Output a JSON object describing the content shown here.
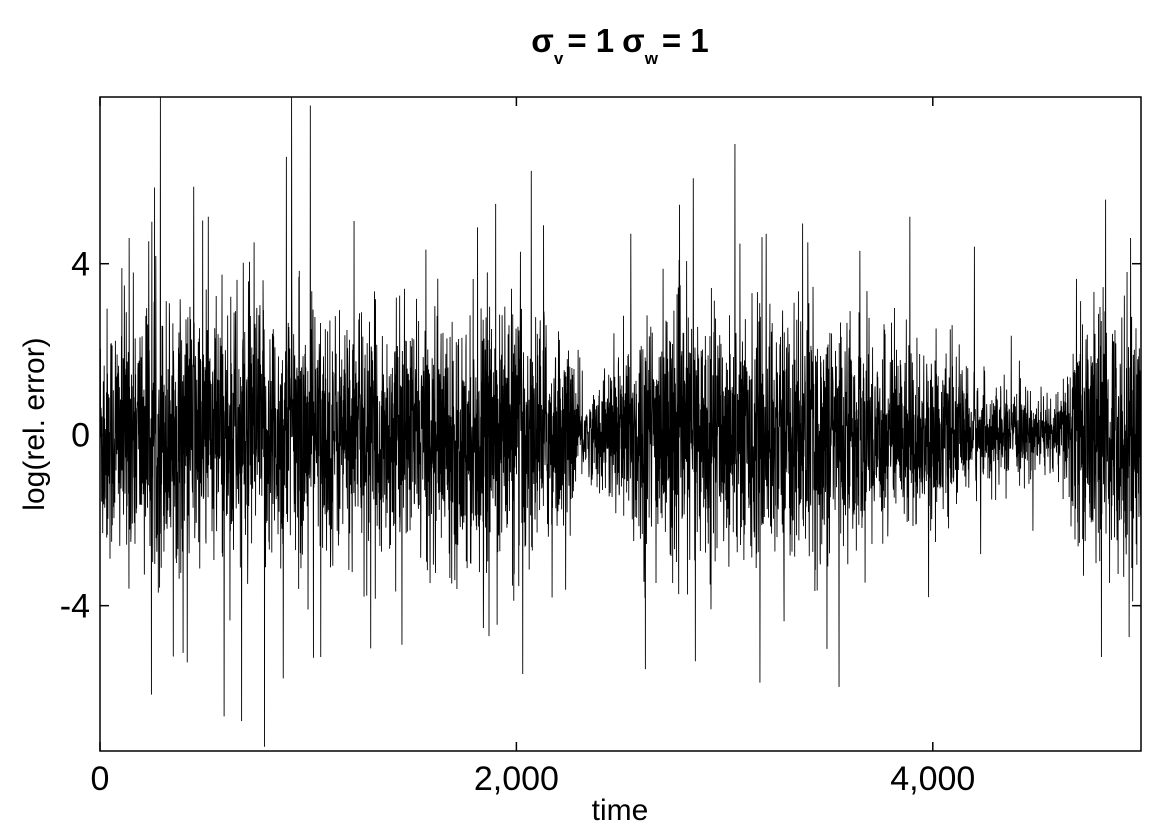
{
  "chart_data": {
    "type": "line",
    "title": {
      "parts": [
        {
          "sym": "σ",
          "sub": "v",
          "eq": "=  1"
        },
        {
          "sym": "σ",
          "sub": "w",
          "eq": "=  1"
        }
      ]
    },
    "xlabel": "time",
    "ylabel": "log(rel. error)",
    "xlim": [
      0,
      5000
    ],
    "ylim": [
      -7.4,
      7.9
    ],
    "xticks": [
      0,
      2000,
      4000
    ],
    "xtick_labels": [
      "0",
      "2,000",
      "4,000"
    ],
    "yticks": [
      4,
      0,
      -4
    ],
    "ytick_labels": [
      "4",
      "0",
      "-4"
    ],
    "grid": false,
    "series": [
      {
        "color": "#000000",
        "n_points": 5000,
        "mean": 0,
        "envelope": [
          {
            "x": 0,
            "amp": 1.7
          },
          {
            "x": 300,
            "amp": 1.8
          },
          {
            "x": 600,
            "amp": 1.8
          },
          {
            "x": 1000,
            "amp": 1.7
          },
          {
            "x": 1300,
            "amp": 1.5
          },
          {
            "x": 1700,
            "amp": 1.6
          },
          {
            "x": 2000,
            "amp": 1.8
          },
          {
            "x": 2200,
            "amp": 1.4
          },
          {
            "x": 2350,
            "amp": 0.5
          },
          {
            "x": 2450,
            "amp": 1.0
          },
          {
            "x": 2600,
            "amp": 1.7
          },
          {
            "x": 3000,
            "amp": 1.6
          },
          {
            "x": 3400,
            "amp": 1.7
          },
          {
            "x": 3700,
            "amp": 1.4
          },
          {
            "x": 4000,
            "amp": 1.1
          },
          {
            "x": 4300,
            "amp": 0.6
          },
          {
            "x": 4600,
            "amp": 0.5
          },
          {
            "x": 4700,
            "amp": 1.6
          },
          {
            "x": 5000,
            "amp": 1.7
          }
        ],
        "spikes": [
          {
            "x": 140,
            "y": 4.6
          },
          {
            "x": 290,
            "y": 7.9
          },
          {
            "x": 450,
            "y": 5.8
          },
          {
            "x": 520,
            "y": 5.1
          },
          {
            "x": 740,
            "y": 4.5
          },
          {
            "x": 895,
            "y": 6.5
          },
          {
            "x": 920,
            "y": 7.9
          },
          {
            "x": 1010,
            "y": 7.7
          },
          {
            "x": 1220,
            "y": 5.0
          },
          {
            "x": 1900,
            "y": 5.4
          },
          {
            "x": 2130,
            "y": 4.9
          },
          {
            "x": 2550,
            "y": 4.7
          },
          {
            "x": 2850,
            "y": 6.0
          },
          {
            "x": 3050,
            "y": 6.8
          },
          {
            "x": 3200,
            "y": 4.7
          },
          {
            "x": 3400,
            "y": 4.5
          },
          {
            "x": 3650,
            "y": 4.3
          },
          {
            "x": 3890,
            "y": 5.1
          },
          {
            "x": 4200,
            "y": 4.4
          },
          {
            "x": 4830,
            "y": 5.5
          },
          {
            "x": 4950,
            "y": 4.6
          },
          {
            "x": 680,
            "y": -6.7
          },
          {
            "x": 790,
            "y": -7.3
          },
          {
            "x": 880,
            "y": -5.7
          },
          {
            "x": 1060,
            "y": -5.2
          },
          {
            "x": 1300,
            "y": -5.0
          },
          {
            "x": 2030,
            "y": -5.6
          },
          {
            "x": 2860,
            "y": -5.3
          },
          {
            "x": 3170,
            "y": -5.8
          },
          {
            "x": 3550,
            "y": -5.9
          },
          {
            "x": 3980,
            "y": -3.8
          },
          {
            "x": 4810,
            "y": -5.2
          },
          {
            "x": 4960,
            "y": -3.9
          }
        ]
      }
    ]
  }
}
